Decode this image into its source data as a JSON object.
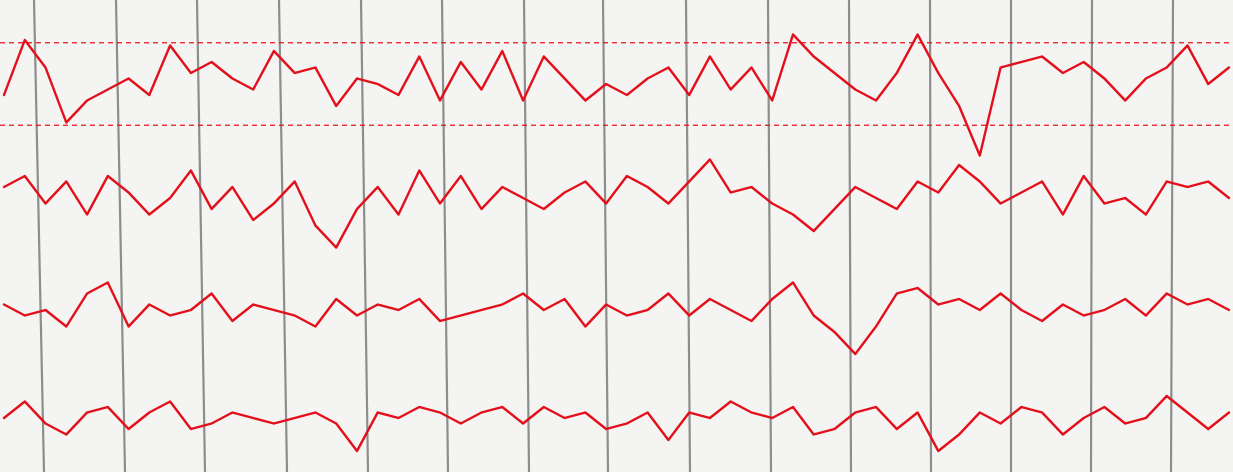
{
  "chart_data": [
    {
      "type": "line",
      "color": "#e3101c",
      "ylim": [
        -1,
        1
      ],
      "reference_lines": [
        0.75,
        -0.75
      ],
      "values": [
        -0.2,
        0.8,
        0.3,
        -0.7,
        -0.3,
        -0.1,
        0.1,
        -0.2,
        0.7,
        0.2,
        0.4,
        0.1,
        -0.1,
        0.6,
        0.2,
        0.3,
        -0.4,
        0.1,
        0.0,
        -0.2,
        0.5,
        -0.3,
        0.4,
        -0.1,
        0.6,
        -0.3,
        0.5,
        0.1,
        -0.3,
        0.0,
        -0.2,
        0.1,
        0.3,
        -0.2,
        0.5,
        -0.1,
        0.3,
        -0.3,
        0.9,
        0.5,
        0.2,
        -0.1,
        -0.3,
        0.2,
        0.9,
        0.2,
        -0.4,
        -1.3,
        0.3,
        0.4,
        0.5,
        0.2,
        0.4,
        0.1,
        -0.3,
        0.1,
        0.3,
        0.7,
        0.0,
        0.3
      ]
    },
    {
      "type": "line",
      "color": "#e3101c",
      "ylim": [
        -1,
        1
      ],
      "values": [
        0.2,
        0.4,
        -0.1,
        0.3,
        -0.3,
        0.4,
        0.1,
        -0.3,
        0.0,
        0.5,
        -0.2,
        0.2,
        -0.4,
        -0.1,
        0.3,
        -0.5,
        -0.9,
        -0.2,
        0.2,
        -0.3,
        0.5,
        -0.1,
        0.4,
        -0.2,
        0.2,
        0.0,
        -0.2,
        0.1,
        0.3,
        -0.1,
        0.4,
        0.2,
        -0.1,
        0.3,
        0.7,
        0.1,
        0.2,
        -0.1,
        -0.3,
        -0.6,
        -0.2,
        0.2,
        0.0,
        -0.2,
        0.3,
        0.1,
        0.6,
        0.3,
        -0.1,
        0.1,
        0.3,
        -0.3,
        0.4,
        -0.1,
        0.0,
        -0.3,
        0.3,
        0.2,
        0.3,
        0.0
      ]
    },
    {
      "type": "line",
      "color": "#e3101c",
      "ylim": [
        -1,
        1
      ],
      "values": [
        0.1,
        -0.1,
        0.0,
        -0.3,
        0.3,
        0.5,
        -0.3,
        0.1,
        -0.1,
        0.0,
        0.3,
        -0.2,
        0.1,
        0.0,
        -0.1,
        -0.3,
        0.2,
        -0.1,
        0.1,
        0.0,
        0.2,
        -0.2,
        -0.1,
        0.0,
        0.1,
        0.3,
        0.0,
        0.2,
        -0.3,
        0.1,
        -0.1,
        0.0,
        0.3,
        -0.1,
        0.2,
        0.0,
        -0.2,
        0.2,
        0.5,
        -0.1,
        -0.4,
        -0.8,
        -0.3,
        0.3,
        0.4,
        0.1,
        0.2,
        0.0,
        0.3,
        0.0,
        -0.2,
        0.1,
        -0.1,
        0.0,
        0.2,
        -0.1,
        0.3,
        0.1,
        0.2,
        0.0
      ]
    },
    {
      "type": "line",
      "color": "#e3101c",
      "ylim": [
        -1,
        1
      ],
      "values": [
        0.0,
        0.3,
        -0.1,
        -0.3,
        0.1,
        0.2,
        -0.2,
        0.1,
        0.3,
        -0.2,
        -0.1,
        0.1,
        0.0,
        -0.1,
        0.0,
        0.1,
        -0.1,
        -0.6,
        0.1,
        0.0,
        0.2,
        0.1,
        -0.1,
        0.1,
        0.2,
        -0.1,
        0.2,
        0.0,
        0.1,
        -0.2,
        -0.1,
        0.1,
        -0.4,
        0.1,
        0.0,
        0.3,
        0.1,
        0.0,
        0.2,
        -0.3,
        -0.2,
        0.1,
        0.2,
        -0.2,
        0.1,
        -0.6,
        -0.3,
        0.1,
        -0.1,
        0.2,
        0.1,
        -0.3,
        0.0,
        0.2,
        -0.1,
        0.0,
        0.4,
        0.1,
        -0.2,
        0.1
      ]
    }
  ]
}
